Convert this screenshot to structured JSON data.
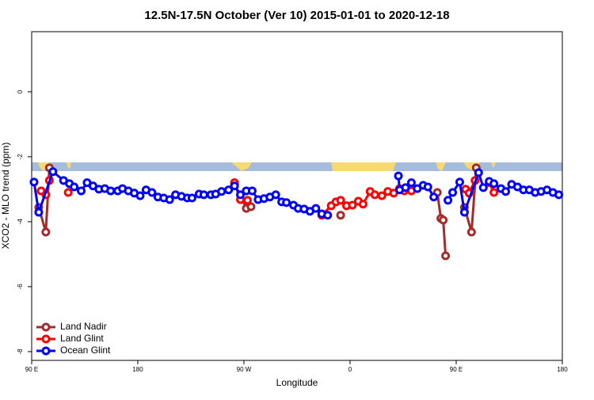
{
  "chart_data": {
    "type": "line",
    "title": "12.5N-17.5N October (Ver 10)   2015-01-01 to 2020-12-18",
    "xlabel": "Longitude",
    "ylabel": "XCO2 - MLO trend (ppm)",
    "xlim": [
      90,
      540
    ],
    "ylim": [
      -8.27,
      1.85
    ],
    "xticks": [
      {
        "value": 90,
        "label": "90 E"
      },
      180,
      {
        "value": 270,
        "label": "90 W"
      },
      {
        "value": 360,
        "label": "0"
      },
      {
        "value": 450,
        "label": "90 E"
      },
      {
        "value": 540,
        "label": "180"
      }
    ],
    "yticks": [
      0,
      -2,
      -4,
      -6,
      -8
    ],
    "legend": "bottom-left",
    "series": [
      {
        "name": "Land Nadir",
        "color": "#a52a2a",
        "x": [
          96,
          102,
          105,
          null,
          262,
          272,
          276,
          null,
          352,
          null,
          434,
          437,
          439,
          441,
          null,
          457,
          463,
          467
        ],
        "values": [
          -3.56,
          -4.32,
          -2.34,
          null,
          -2.83,
          -3.59,
          -3.54,
          null,
          -3.8,
          null,
          -3.1,
          -3.9,
          -3.95,
          -5.05,
          null,
          -3.56,
          -4.32,
          -2.34
        ]
      },
      {
        "name": "Land Glint",
        "color": "#ff0000",
        "x": [
          98,
          102,
          105,
          null,
          121,
          null,
          262,
          267,
          273,
          null,
          336,
          344,
          348,
          352,
          357,
          362,
          367,
          371,
          377,
          381,
          387,
          392,
          397,
          402,
          406,
          412,
          null,
          458,
          461,
          466,
          null,
          478,
          482
        ],
        "values": [
          -3.05,
          -3.17,
          -2.73,
          null,
          -3.1,
          null,
          -2.8,
          -3.32,
          -3.34,
          null,
          -3.8,
          -3.51,
          -3.39,
          -3.34,
          -3.51,
          -3.49,
          -3.37,
          -3.46,
          -3.07,
          -3.17,
          -3.2,
          -3.07,
          -3.12,
          -2.98,
          -3.05,
          -3.05,
          null,
          -3.0,
          -3.12,
          -2.73,
          null,
          -2.8,
          -3.1
        ]
      },
      {
        "name": "Ocean Glint",
        "color": "#0000ff",
        "x": [
          92,
          96,
          108,
          117,
          122,
          126,
          132,
          137,
          142,
          147,
          152,
          157,
          163,
          167,
          172,
          177,
          182,
          187,
          192,
          197,
          202,
          207,
          212,
          217,
          222,
          226,
          232,
          236,
          242,
          246,
          251,
          257,
          262,
          267,
          272,
          277,
          282,
          287,
          292,
          297,
          302,
          306,
          312,
          316,
          321,
          326,
          331,
          336,
          341,
          null,
          401,
          402,
          407,
          412,
          417,
          422,
          426,
          431,
          null,
          443,
          447,
          453,
          457,
          469,
          473,
          478,
          482,
          488,
          492,
          497,
          502,
          507,
          512,
          517,
          522,
          527,
          532,
          537
        ],
        "values": [
          -2.78,
          -3.71,
          -2.46,
          -2.73,
          -2.83,
          -2.93,
          -3.05,
          -2.8,
          -2.9,
          -3.0,
          -2.98,
          -3.05,
          -3.05,
          -2.98,
          -3.05,
          -3.12,
          -3.2,
          -3.02,
          -3.1,
          -3.24,
          -3.27,
          -3.32,
          -3.17,
          -3.22,
          -3.27,
          -3.27,
          -3.15,
          -3.17,
          -3.17,
          -3.15,
          -3.07,
          -3.02,
          -2.9,
          -3.17,
          -3.05,
          -3.05,
          -3.32,
          -3.29,
          -3.24,
          -3.17,
          -3.39,
          -3.41,
          -3.49,
          -3.59,
          -3.61,
          -3.68,
          -3.59,
          -3.76,
          -3.8,
          null,
          -2.59,
          -3.02,
          -2.95,
          -2.8,
          -2.98,
          -2.88,
          -2.93,
          -3.24,
          null,
          -3.34,
          -3.1,
          -2.78,
          -3.71,
          -2.49,
          -2.95,
          -2.76,
          -2.83,
          -2.98,
          -3.07,
          -2.85,
          -2.93,
          -3.02,
          -3.02,
          -3.1,
          -3.07,
          -3.02,
          -3.1,
          -3.17
        ]
      }
    ]
  }
}
